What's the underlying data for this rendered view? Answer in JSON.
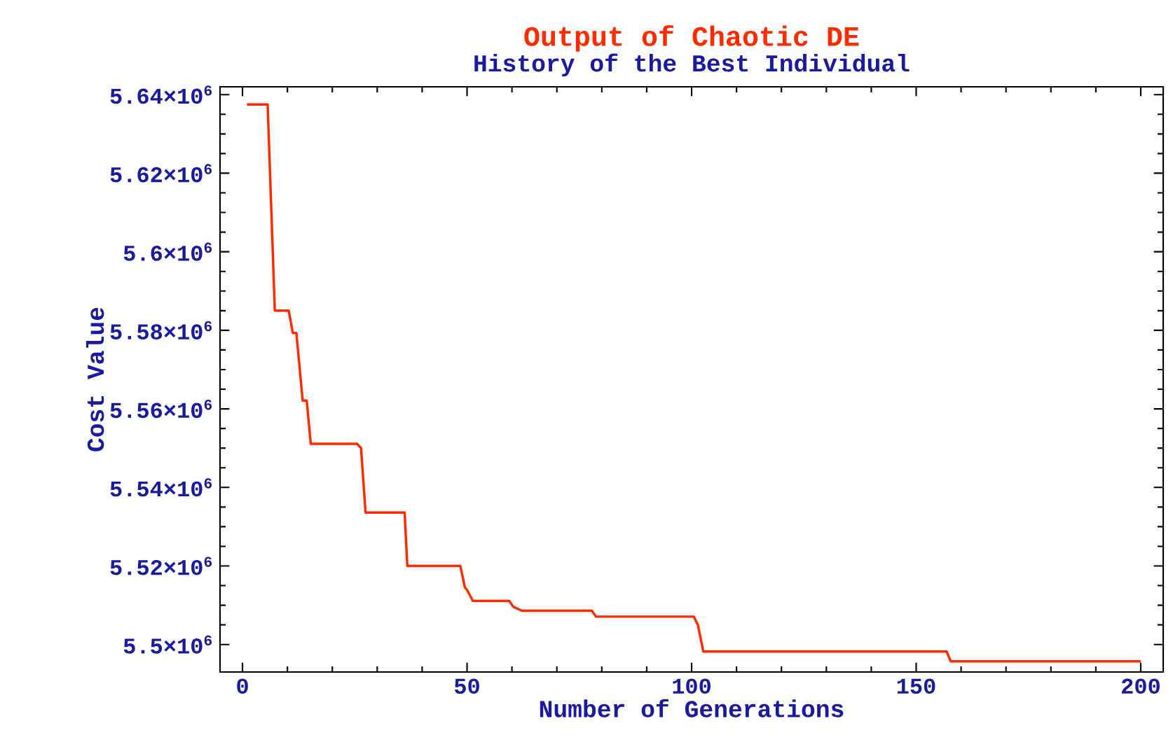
{
  "chart_data": {
    "type": "step",
    "title": "Output of Chaotic DE",
    "subtitle": "History of the Best Individual",
    "xlabel": "Number of Generations",
    "ylabel": "Cost Value",
    "xlim": [
      -5,
      205
    ],
    "xticks": [
      0,
      50,
      100,
      150,
      200
    ],
    "ylim": [
      5493000,
      5642000
    ],
    "yticks": [
      {
        "value": 5500000,
        "label": "5.5×10$^{6}$"
      },
      {
        "value": 5520000,
        "label": "5.52×10$^{6}$"
      },
      {
        "value": 5540000,
        "label": "5.54×10$^{6}$"
      },
      {
        "value": 5560000,
        "label": "5.56×10$^{6}$"
      },
      {
        "value": 5580000,
        "label": "5.58×10$^{6}$"
      },
      {
        "value": 5600000,
        "label": "5.6×10$^{6}$"
      },
      {
        "value": 5620000,
        "label": "5.62×10$^{6}$"
      },
      {
        "value": 5640000,
        "label": "5.64×10$^{6}$"
      }
    ],
    "series": [
      {
        "color": "#ff2a00",
        "x": [
          1,
          5.6,
          7.2,
          10.3,
          11.2,
          12,
          13.4,
          14.3,
          15.2,
          25.5,
          26.4,
          27.4,
          36.1,
          36.7,
          48.5,
          49.5,
          50,
          51.3,
          59.4,
          60.3,
          62.2,
          77.8,
          78.7,
          100.5,
          101.4,
          102.6,
          156.8,
          157.7,
          200
        ],
        "values": [
          5637500,
          5637500,
          5585000,
          5585000,
          5579300,
          5579300,
          5562100,
          5562100,
          5551100,
          5551100,
          5550000,
          5533600,
          5533600,
          5520000,
          5520000,
          5514600,
          5513900,
          5511100,
          5511100,
          5509600,
          5508600,
          5508600,
          5507100,
          5507100,
          5505000,
          5498200,
          5498200,
          5495700,
          5495700
        ]
      }
    ],
    "grid": false,
    "marker": "none"
  }
}
